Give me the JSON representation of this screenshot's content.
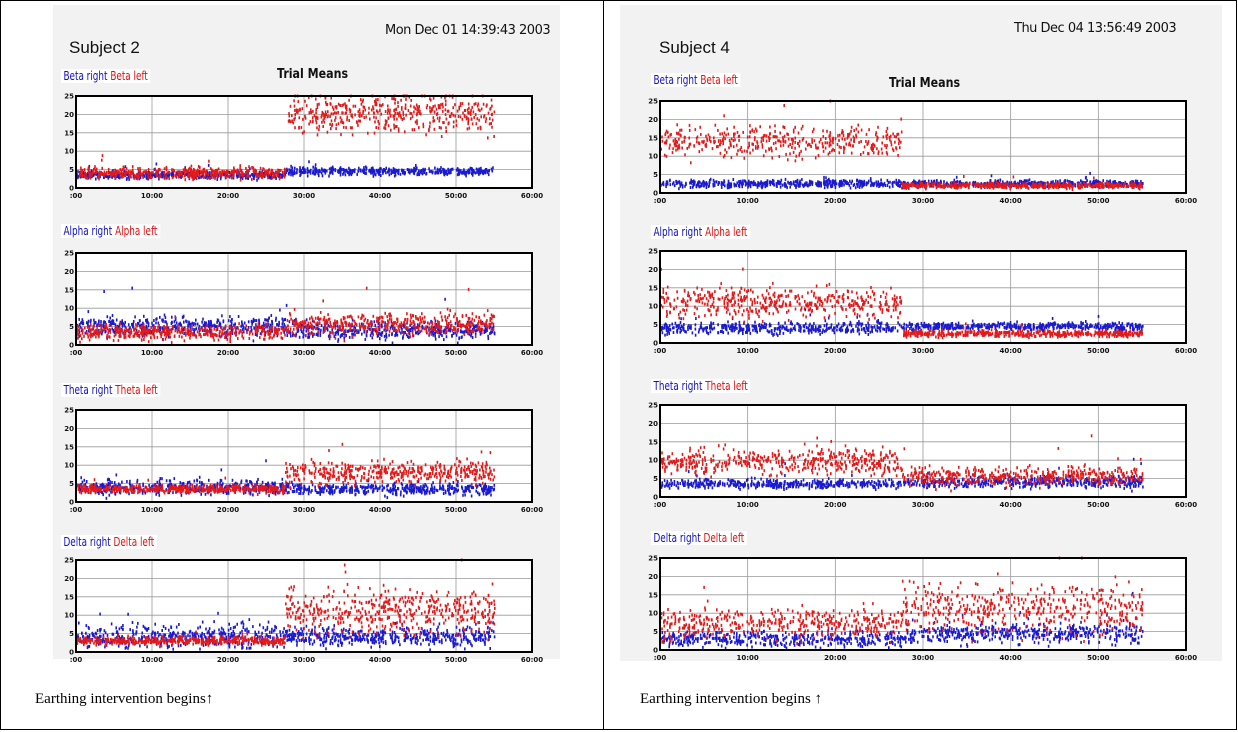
{
  "panels": [
    {
      "subject": "Subject 2",
      "timestamp": "Mon Dec 01 14:39:43 2003",
      "caption": "Earthing intervention begins↑",
      "trial_means": "Trial Means"
    },
    {
      "subject": "Subject 4",
      "timestamp": "Thu Dec 04 13:56:49 2003",
      "caption": "Earthing intervention begins ↑",
      "trial_means": "Trial Means"
    }
  ],
  "chart_data": [
    {
      "panel": "Subject 2",
      "band": "Beta",
      "type": "scatter",
      "legend": {
        "right": "Beta  right",
        "left": "Beta left"
      },
      "x_ticks": [
        ":00",
        "10:00",
        "20:00",
        "30:00",
        "40:00",
        "50:00",
        "60:00"
      ],
      "y_ticks": [
        "0",
        "5",
        "10",
        "15",
        "20",
        "25"
      ],
      "ylim": [
        0,
        25
      ],
      "xlim": [
        0,
        60
      ],
      "intervention_x": 27.5,
      "series": [
        {
          "name": "Beta  right",
          "color": "#1a1ad0",
          "before_mean": 3.5,
          "before_spread": 1.0,
          "after_mean": 4.5,
          "after_spread": 1.0
        },
        {
          "name": "Beta left",
          "color": "#e31a1a",
          "before_mean": 4.0,
          "before_spread": 1.5,
          "after_mean": 20.0,
          "after_spread": 5.0
        }
      ]
    },
    {
      "panel": "Subject 2",
      "band": "Alpha",
      "type": "scatter",
      "legend": {
        "right": "Alpha  right",
        "left": "Alpha left"
      },
      "x_ticks": [
        ":00",
        "10:00",
        "20:00",
        "30:00",
        "40:00",
        "50:00",
        "60:00"
      ],
      "y_ticks": [
        "0",
        "5",
        "10",
        "15",
        "20",
        "25"
      ],
      "ylim": [
        0,
        25
      ],
      "xlim": [
        0,
        60
      ],
      "intervention_x": 27.5,
      "series": [
        {
          "name": "Alpha  right",
          "color": "#1a1ad0",
          "before_mean": 5.0,
          "before_spread": 2.5,
          "after_mean": 4.0,
          "after_spread": 2.5
        },
        {
          "name": "Alpha left",
          "color": "#e31a1a",
          "before_mean": 3.5,
          "before_spread": 2.0,
          "after_mean": 5.5,
          "after_spread": 3.0
        }
      ]
    },
    {
      "panel": "Subject 2",
      "band": "Theta",
      "type": "scatter",
      "legend": {
        "right": "Theta  right",
        "left": "Theta left"
      },
      "x_ticks": [
        ":00",
        "10:00",
        "20:00",
        "30:00",
        "40:00",
        "50:00",
        "60:00"
      ],
      "y_ticks": [
        "0",
        "5",
        "10",
        "15",
        "20",
        "25"
      ],
      "ylim": [
        0,
        25
      ],
      "xlim": [
        0,
        60
      ],
      "intervention_x": 27.5,
      "series": [
        {
          "name": "Theta  right",
          "color": "#1a1ad0",
          "before_mean": 4.0,
          "before_spread": 2.0,
          "after_mean": 3.5,
          "after_spread": 1.5
        },
        {
          "name": "Theta left",
          "color": "#e31a1a",
          "before_mean": 3.5,
          "before_spread": 1.0,
          "after_mean": 8.0,
          "after_spread": 3.0
        }
      ]
    },
    {
      "panel": "Subject 2",
      "band": "Delta",
      "type": "scatter",
      "legend": {
        "right": "Delta  right",
        "left": "Delta left"
      },
      "x_ticks": [
        ":00",
        "10:00",
        "20:00",
        "30:00",
        "40:00",
        "50:00",
        "60:00"
      ],
      "y_ticks": [
        "0",
        "5",
        "10",
        "15",
        "20",
        "25"
      ],
      "ylim": [
        0,
        25
      ],
      "xlim": [
        0,
        60
      ],
      "intervention_x": 27.5,
      "series": [
        {
          "name": "Delta  right",
          "color": "#1a1ad0",
          "before_mean": 4.0,
          "before_spread": 3.0,
          "after_mean": 4.0,
          "after_spread": 2.5
        },
        {
          "name": "Delta left",
          "color": "#e31a1a",
          "before_mean": 3.0,
          "before_spread": 1.0,
          "after_mean": 11.0,
          "after_spread": 6.0
        }
      ]
    },
    {
      "panel": "Subject 4",
      "band": "Beta",
      "type": "scatter",
      "legend": {
        "right": "Beta  right",
        "left": "Beta left"
      },
      "x_ticks": [
        ":00",
        "10:00",
        "20:00",
        "30:00",
        "40:00",
        "50:00",
        "60:00"
      ],
      "y_ticks": [
        "0",
        "5",
        "10",
        "15",
        "20",
        "25"
      ],
      "ylim": [
        0,
        25
      ],
      "xlim": [
        0,
        60
      ],
      "intervention_x": 27.5,
      "series": [
        {
          "name": "Beta  right",
          "color": "#1a1ad0",
          "before_mean": 2.5,
          "before_spread": 1.0,
          "after_mean": 2.5,
          "after_spread": 0.8
        },
        {
          "name": "Beta left",
          "color": "#e31a1a",
          "before_mean": 14.0,
          "before_spread": 4.0,
          "after_mean": 2.0,
          "after_spread": 0.7
        }
      ]
    },
    {
      "panel": "Subject 4",
      "band": "Alpha",
      "type": "scatter",
      "legend": {
        "right": "Alpha  right",
        "left": "Alpha left"
      },
      "x_ticks": [
        ":00",
        "10:00",
        "20:00",
        "30:00",
        "40:00",
        "50:00",
        "60:00"
      ],
      "y_ticks": [
        "0",
        "5",
        "10",
        "15",
        "20",
        "25"
      ],
      "ylim": [
        0,
        25
      ],
      "xlim": [
        0,
        60
      ],
      "intervention_x": 27.5,
      "series": [
        {
          "name": "Alpha  right",
          "color": "#1a1ad0",
          "before_mean": 4.0,
          "before_spread": 1.5,
          "after_mean": 4.5,
          "after_spread": 1.0
        },
        {
          "name": "Alpha left",
          "color": "#e31a1a",
          "before_mean": 11.0,
          "before_spread": 4.0,
          "after_mean": 2.5,
          "after_spread": 0.8
        }
      ]
    },
    {
      "panel": "Subject 4",
      "band": "Theta",
      "type": "scatter",
      "legend": {
        "right": "Theta  right",
        "left": "Theta left"
      },
      "x_ticks": [
        ":00",
        "10:00",
        "20:00",
        "30:00",
        "40:00",
        "50:00",
        "60:00"
      ],
      "y_ticks": [
        "0",
        "5",
        "10",
        "15",
        "20",
        "25"
      ],
      "ylim": [
        0,
        25
      ],
      "xlim": [
        0,
        60
      ],
      "intervention_x": 27.5,
      "series": [
        {
          "name": "Theta  right",
          "color": "#1a1ad0",
          "before_mean": 3.5,
          "before_spread": 1.2,
          "after_mean": 4.0,
          "after_spread": 1.5
        },
        {
          "name": "Theta left",
          "color": "#e31a1a",
          "before_mean": 9.5,
          "before_spread": 3.5,
          "after_mean": 5.5,
          "after_spread": 2.5
        }
      ]
    },
    {
      "panel": "Subject 4",
      "band": "Delta",
      "type": "scatter",
      "legend": {
        "right": "Delta  right",
        "left": "Delta left"
      },
      "x_ticks": [
        ":00",
        "10:00",
        "20:00",
        "30:00",
        "40:00",
        "50:00",
        "60:00"
      ],
      "y_ticks": [
        "0",
        "5",
        "10",
        "15",
        "20",
        "25"
      ],
      "ylim": [
        0,
        25
      ],
      "xlim": [
        0,
        60
      ],
      "intervention_x": 27.5,
      "series": [
        {
          "name": "Delta  right",
          "color": "#1a1ad0",
          "before_mean": 3.0,
          "before_spread": 2.0,
          "after_mean": 4.5,
          "after_spread": 2.5
        },
        {
          "name": "Delta left",
          "color": "#e31a1a",
          "before_mean": 7.0,
          "before_spread": 4.0,
          "after_mean": 11.0,
          "after_spread": 6.0
        }
      ]
    }
  ]
}
